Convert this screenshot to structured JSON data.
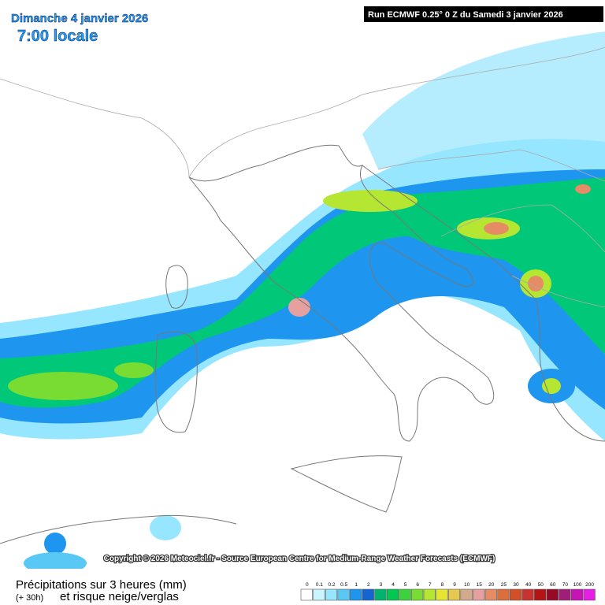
{
  "header": {
    "date": "Dimanche 4 janvier 2026",
    "time": "7:00 locale",
    "run": "Run ECMWF 0.25° 0 Z du Samedi 3 janvier 2026"
  },
  "copyright": "Copyright © 2026 Meteociel.fr - Source European Centre for Medium-Range Weather Forecasts (ECMWF)",
  "legend": {
    "title": "Précipitations sur 3 heures (mm)",
    "lead": "(+ 30h)",
    "subtitle": "et risque neige/verglas",
    "steps": [
      {
        "value": 0,
        "color": "#ffffff"
      },
      {
        "value": 0.1,
        "color": "#c8f5ff"
      },
      {
        "value": 0.2,
        "color": "#96e6ff"
      },
      {
        "value": 0.5,
        "color": "#5ac8f5"
      },
      {
        "value": 1,
        "color": "#1e96f0"
      },
      {
        "value": 2,
        "color": "#1464d2"
      },
      {
        "value": 3,
        "color": "#00b46e"
      },
      {
        "value": 4,
        "color": "#00c850"
      },
      {
        "value": 5,
        "color": "#3cd23c"
      },
      {
        "value": 6,
        "color": "#78dc32"
      },
      {
        "value": 7,
        "color": "#b4e632"
      },
      {
        "value": 8,
        "color": "#e6e632"
      },
      {
        "value": 9,
        "color": "#e6c850"
      },
      {
        "value": 10,
        "color": "#d2aa8c"
      },
      {
        "value": 15,
        "color": "#e6a0a0"
      },
      {
        "value": 20,
        "color": "#e68c64"
      },
      {
        "value": 25,
        "color": "#dc6e3c"
      },
      {
        "value": 30,
        "color": "#d25028"
      },
      {
        "value": 40,
        "color": "#c83232"
      },
      {
        "value": 50,
        "color": "#b41414"
      },
      {
        "value": 60,
        "color": "#960a28"
      },
      {
        "value": 70,
        "color": "#a01e78"
      },
      {
        "value": 100,
        "color": "#c814b4"
      },
      {
        "value": 200,
        "color": "#e61ee6"
      }
    ]
  }
}
